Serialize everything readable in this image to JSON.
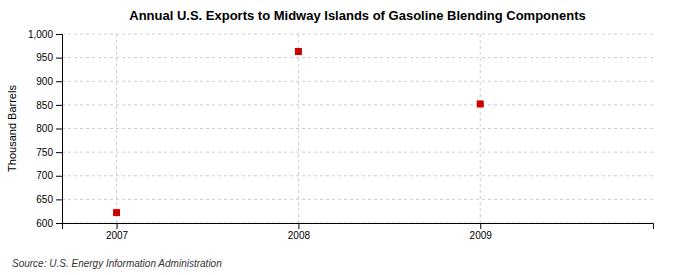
{
  "chart_data": {
    "type": "scatter",
    "title": "Annual U.S. Exports to Midway Islands of Gasoline Blending Components",
    "ylabel": "Thousand Barrels",
    "source": "Source: U.S. Energy Information Administration",
    "x": [
      2007,
      2008,
      2009
    ],
    "values": [
      622,
      963,
      852
    ],
    "color": "#cc0000",
    "marker": "square",
    "xlim": [
      2006.7,
      2009.95
    ],
    "xticks": [
      2007,
      2008,
      2009
    ],
    "ylim": [
      600,
      1000
    ],
    "yticks": [
      600,
      650,
      700,
      750,
      800,
      850,
      900,
      950,
      {
        "value": 1000,
        "label": "1,000"
      }
    ],
    "grid": true
  }
}
